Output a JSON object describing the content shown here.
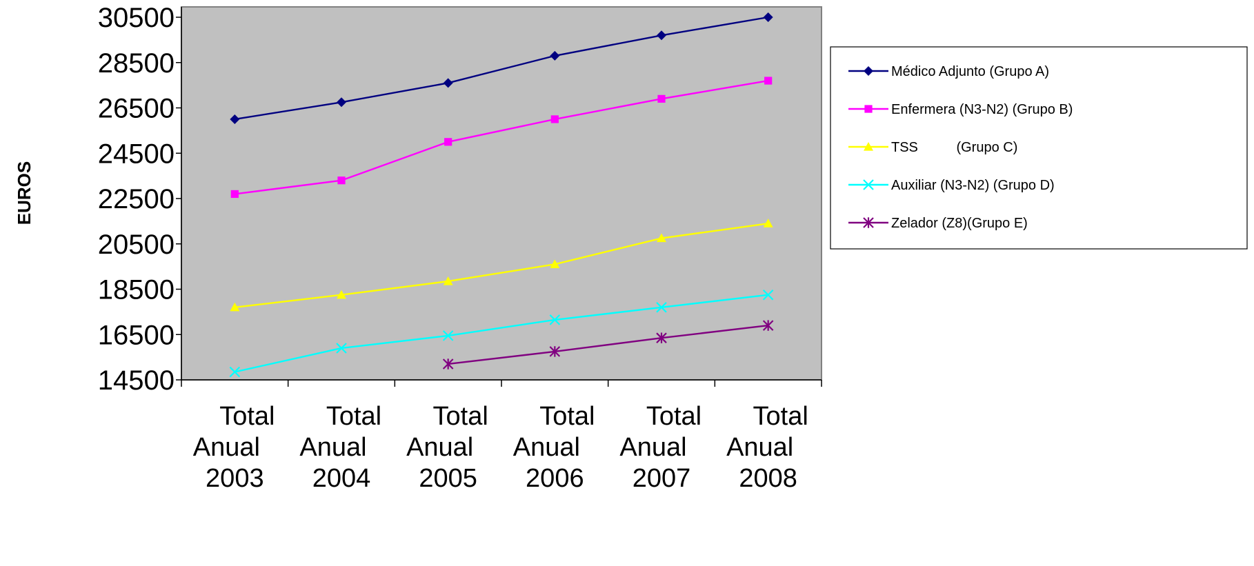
{
  "chart_data": {
    "type": "line",
    "title": "",
    "xlabel": "",
    "ylabel": "EUROS",
    "ylim": [
      14500,
      30500
    ],
    "yticks": [
      "30500",
      "28500",
      "26500",
      "24500",
      "22500",
      "20500",
      "18500",
      "16500",
      "14500"
    ],
    "categories": [
      [
        "Total",
        "Anual",
        "2003"
      ],
      [
        "Total",
        "Anual",
        "2004"
      ],
      [
        "Total",
        "Anual",
        "2005"
      ],
      [
        "Total",
        "Anual",
        "2006"
      ],
      [
        "Total",
        "Anual",
        "2007"
      ],
      [
        "Total",
        "Anual",
        "2008"
      ]
    ],
    "plot_background": "#c0c0c0",
    "grid": false,
    "legend_position": "right",
    "series": [
      {
        "name": "Médico Adjunto (Grupo A)",
        "color": "#000080",
        "marker": "diamond",
        "values": [
          26000,
          26750,
          27600,
          28800,
          29700,
          30500
        ]
      },
      {
        "name": "Enfermera (N3-N2) (Grupo B)",
        "color": "#ff00ff",
        "marker": "square",
        "values": [
          22700,
          23300,
          25000,
          26000,
          26900,
          27700
        ]
      },
      {
        "name": "TSS          (Grupo C)",
        "color": "#ffff00",
        "marker": "triangle",
        "values": [
          17700,
          18250,
          18850,
          19600,
          20750,
          21400
        ]
      },
      {
        "name": "Auxiliar (N3-N2) (Grupo D)",
        "color": "#00ffff",
        "marker": "x",
        "values": [
          14850,
          15900,
          16450,
          17150,
          17700,
          18250
        ]
      },
      {
        "name": "Zelador (Z8)(Grupo E)",
        "color": "#800080",
        "marker": "star",
        "values": [
          null,
          null,
          15200,
          15750,
          16350,
          16900
        ]
      }
    ]
  }
}
